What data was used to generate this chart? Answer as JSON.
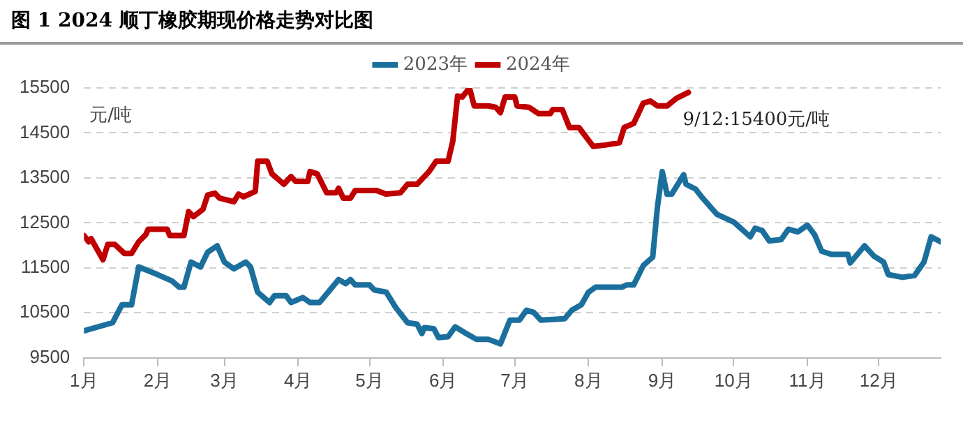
{
  "chart_data": {
    "type": "line",
    "title": "图 1  2024 顺丁橡胶期现价格走势对比图",
    "ylabel": "元/吨",
    "xlim": [
      "--01-01",
      "--12-27"
    ],
    "xticks": [
      {
        "value": "--01-01",
        "label": "1月"
      },
      {
        "value": "--02-01",
        "label": "2月"
      },
      {
        "value": "--03-01",
        "label": "3月"
      },
      {
        "value": "--04-01",
        "label": "4月"
      },
      {
        "value": "--05-01",
        "label": "5月"
      },
      {
        "value": "--06-01",
        "label": "6月"
      },
      {
        "value": "--07-01",
        "label": "7月"
      },
      {
        "value": "--08-01",
        "label": "8月"
      },
      {
        "value": "--09-01",
        "label": "9月"
      },
      {
        "value": "--10-01",
        "label": "10月"
      },
      {
        "value": "--11-01",
        "label": "11月"
      },
      {
        "value": "--12-01",
        "label": "12月"
      }
    ],
    "ylim": [
      9500,
      15500
    ],
    "yticks": [
      9500,
      10500,
      11500,
      12500,
      13500,
      14500,
      15500
    ],
    "grid": "y",
    "legend": "top",
    "marker": "none",
    "line_style": "solid",
    "annotations": [
      {
        "text": "9/12:15400元/吨",
        "x": "--09-12",
        "y": 15400
      }
    ],
    "series": [
      {
        "name": "2023年",
        "color": "#1b6f9c",
        "x": [
          "--01-01",
          "--01-13",
          "--01-17",
          "--01-21",
          "--01-24",
          "--02-01",
          "--02-07",
          "--02-10",
          "--02-12",
          "--02-15",
          "--02-19",
          "--02-22",
          "--02-26",
          "--03-01",
          "--03-05",
          "--03-10",
          "--03-12",
          "--03-15",
          "--03-20",
          "--03-22",
          "--03-27",
          "--03-29",
          "--04-03",
          "--04-06",
          "--04-10",
          "--04-18",
          "--04-21",
          "--04-23",
          "--04-25",
          "--05-01",
          "--05-03",
          "--05-08",
          "--05-12",
          "--05-17",
          "--05-21",
          "--05-23",
          "--05-24",
          "--05-28",
          "--05-30",
          "--06-03",
          "--06-06",
          "--06-10",
          "--06-15",
          "--06-20",
          "--06-25",
          "--06-29",
          "--07-03",
          "--07-06",
          "--07-09",
          "--07-12",
          "--07-22",
          "--07-25",
          "--07-29",
          "--08-01",
          "--08-04",
          "--08-15",
          "--08-17",
          "--08-20",
          "--08-24",
          "--08-28",
          "--08-30",
          "--09-01",
          "--09-03",
          "--09-05",
          "--09-10",
          "--09-11",
          "--09-15",
          "--09-18",
          "--09-24",
          "--10-01",
          "--10-08",
          "--10-10",
          "--10-13",
          "--10-16",
          "--10-21",
          "--10-24",
          "--10-28",
          "--11-01",
          "--11-04",
          "--11-07",
          "--11-11",
          "--11-18",
          "--11-19",
          "--11-25",
          "--11-29",
          "--12-03",
          "--12-05",
          "--12-11",
          "--12-16",
          "--12-20",
          "--12-23",
          "--12-27"
        ],
        "values": [
          10100,
          10280,
          10680,
          10680,
          11520,
          11350,
          11210,
          11070,
          11070,
          11630,
          11520,
          11850,
          11990,
          11630,
          11480,
          11630,
          11520,
          10960,
          10730,
          10880,
          10880,
          10730,
          10840,
          10730,
          10730,
          11240,
          11150,
          11240,
          11120,
          11120,
          11010,
          10960,
          10620,
          10280,
          10250,
          10040,
          10170,
          10150,
          9950,
          9970,
          10190,
          10060,
          9910,
          9910,
          9810,
          10340,
          10340,
          10560,
          10510,
          10340,
          10370,
          10560,
          10680,
          10960,
          11070,
          11070,
          11120,
          11120,
          11550,
          11740,
          12860,
          13640,
          13140,
          13140,
          13570,
          13360,
          13250,
          13050,
          12690,
          12520,
          12190,
          12380,
          12330,
          12100,
          12130,
          12360,
          12300,
          12450,
          12240,
          11870,
          11800,
          11800,
          11610,
          11990,
          11760,
          11630,
          11350,
          11290,
          11330,
          11630,
          12190,
          12080
        ]
      },
      {
        "name": "2024年",
        "color": "#c00000",
        "x": [
          "--01-01",
          "--01-03",
          "--01-04",
          "--01-09",
          "--01-11",
          "--01-14",
          "--01-18",
          "--01-21",
          "--01-24",
          "--01-27",
          "--01-28",
          "--02-05",
          "--02-06",
          "--02-12",
          "--02-14",
          "--02-16",
          "--02-20",
          "--02-22",
          "--02-25",
          "--02-27",
          "--03-05",
          "--03-07",
          "--03-09",
          "--03-14",
          "--03-15",
          "--03-19",
          "--03-21",
          "--03-26",
          "--03-29",
          "--03-31",
          "--04-05",
          "--04-06",
          "--04-09",
          "--04-13",
          "--04-17",
          "--04-18",
          "--04-20",
          "--04-23",
          "--04-25",
          "--05-04",
          "--05-08",
          "--05-14",
          "--05-17",
          "--05-21",
          "--05-26",
          "--05-29",
          "--06-03",
          "--06-05",
          "--06-07",
          "--06-09",
          "--06-12",
          "--06-14",
          "--06-20",
          "--06-23",
          "--06-25",
          "--06-27",
          "--07-01",
          "--07-02",
          "--07-07",
          "--07-11",
          "--07-16",
          "--07-17",
          "--07-21",
          "--07-24",
          "--07-28",
          "--08-03",
          "--08-08",
          "--08-14",
          "--08-16",
          "--08-20",
          "--08-24",
          "--08-27",
          "--08-30",
          "--09-03",
          "--09-07",
          "--09-12"
        ],
        "values": [
          12220,
          12080,
          12150,
          11680,
          12020,
          12020,
          11820,
          11820,
          12080,
          12240,
          12360,
          12360,
          12220,
          12220,
          12750,
          12640,
          12800,
          13120,
          13160,
          13050,
          12970,
          13140,
          13080,
          13200,
          13870,
          13870,
          13590,
          13360,
          13530,
          13420,
          13420,
          13640,
          13590,
          13170,
          13170,
          13270,
          13050,
          13050,
          13220,
          13220,
          13140,
          13170,
          13360,
          13360,
          13640,
          13870,
          13870,
          14320,
          15320,
          15300,
          15500,
          15100,
          15100,
          15070,
          14950,
          15300,
          15300,
          15100,
          15070,
          14930,
          14930,
          15020,
          15020,
          14620,
          14620,
          14200,
          14230,
          14280,
          14620,
          14710,
          15160,
          15210,
          15100,
          15100,
          15270,
          15400
        ]
      }
    ]
  }
}
